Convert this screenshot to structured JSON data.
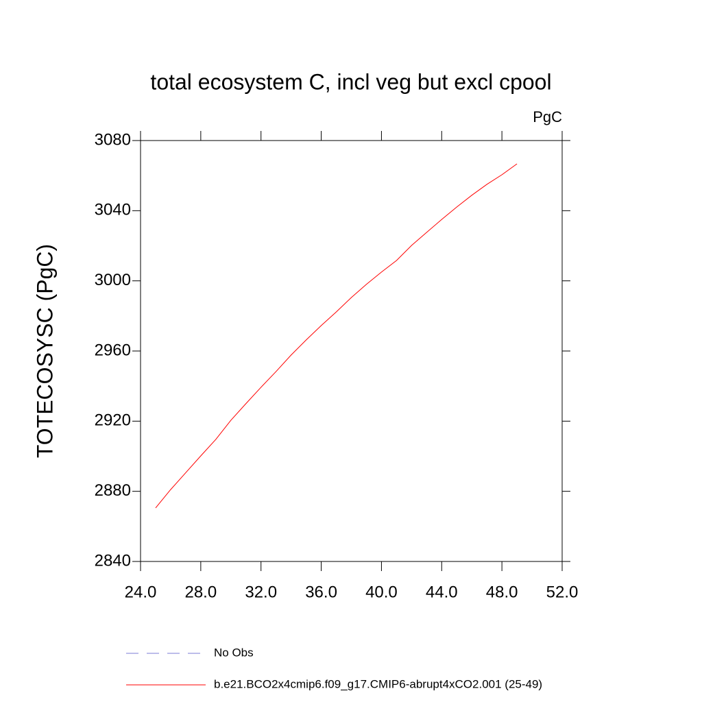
{
  "chart_data": {
    "type": "line",
    "title": "total ecosystem C, incl veg but excl cpool",
    "units": "PgC",
    "ylabel": "TOTECOSYSC  (PgC)",
    "x": [
      25,
      26,
      27,
      28,
      29,
      30,
      31,
      32,
      33,
      34,
      35,
      36,
      37,
      38,
      39,
      40,
      41,
      42,
      43,
      44,
      45,
      46,
      47,
      48,
      49
    ],
    "series": [
      {
        "name": "No Obs",
        "color": "#7b7bd6",
        "dash": true,
        "values": [
          null,
          null,
          null,
          null,
          null,
          null,
          null,
          null,
          null,
          null,
          null,
          null,
          null,
          null,
          null,
          null,
          null,
          null,
          null,
          null,
          null,
          null,
          null,
          null,
          null
        ]
      },
      {
        "name": "b.e21.BCO2x4cmip6.f09_g17.CMIP6-abrupt4xCO2.001 (25-49)",
        "color": "#ff0000",
        "dash": false,
        "values": [
          2870.5,
          2881,
          2890.6,
          2900.2,
          2909.6,
          2920.5,
          2930,
          2939.3,
          2948.3,
          2957.7,
          2966.3,
          2974.5,
          2982.3,
          2990.5,
          2998,
          3005,
          3011.6,
          3020.2,
          3027.6,
          3035,
          3042.1,
          3048.8,
          3055,
          3060.5,
          3066.7
        ]
      }
    ],
    "xlim": [
      24,
      52
    ],
    "xticks": [
      {
        "value": 24,
        "label": "24.0"
      },
      {
        "value": 28,
        "label": "28.0"
      },
      {
        "value": 32,
        "label": "32.0"
      },
      {
        "value": 36,
        "label": "36.0"
      },
      {
        "value": 40,
        "label": "40.0"
      },
      {
        "value": 44,
        "label": "44.0"
      },
      {
        "value": 48,
        "label": "48.0"
      },
      {
        "value": 52,
        "label": "52.0"
      }
    ],
    "ylim": [
      2840,
      3080
    ],
    "yticks": [
      2840,
      2880,
      2920,
      2960,
      3000,
      3040,
      3080
    ],
    "grid": false
  }
}
